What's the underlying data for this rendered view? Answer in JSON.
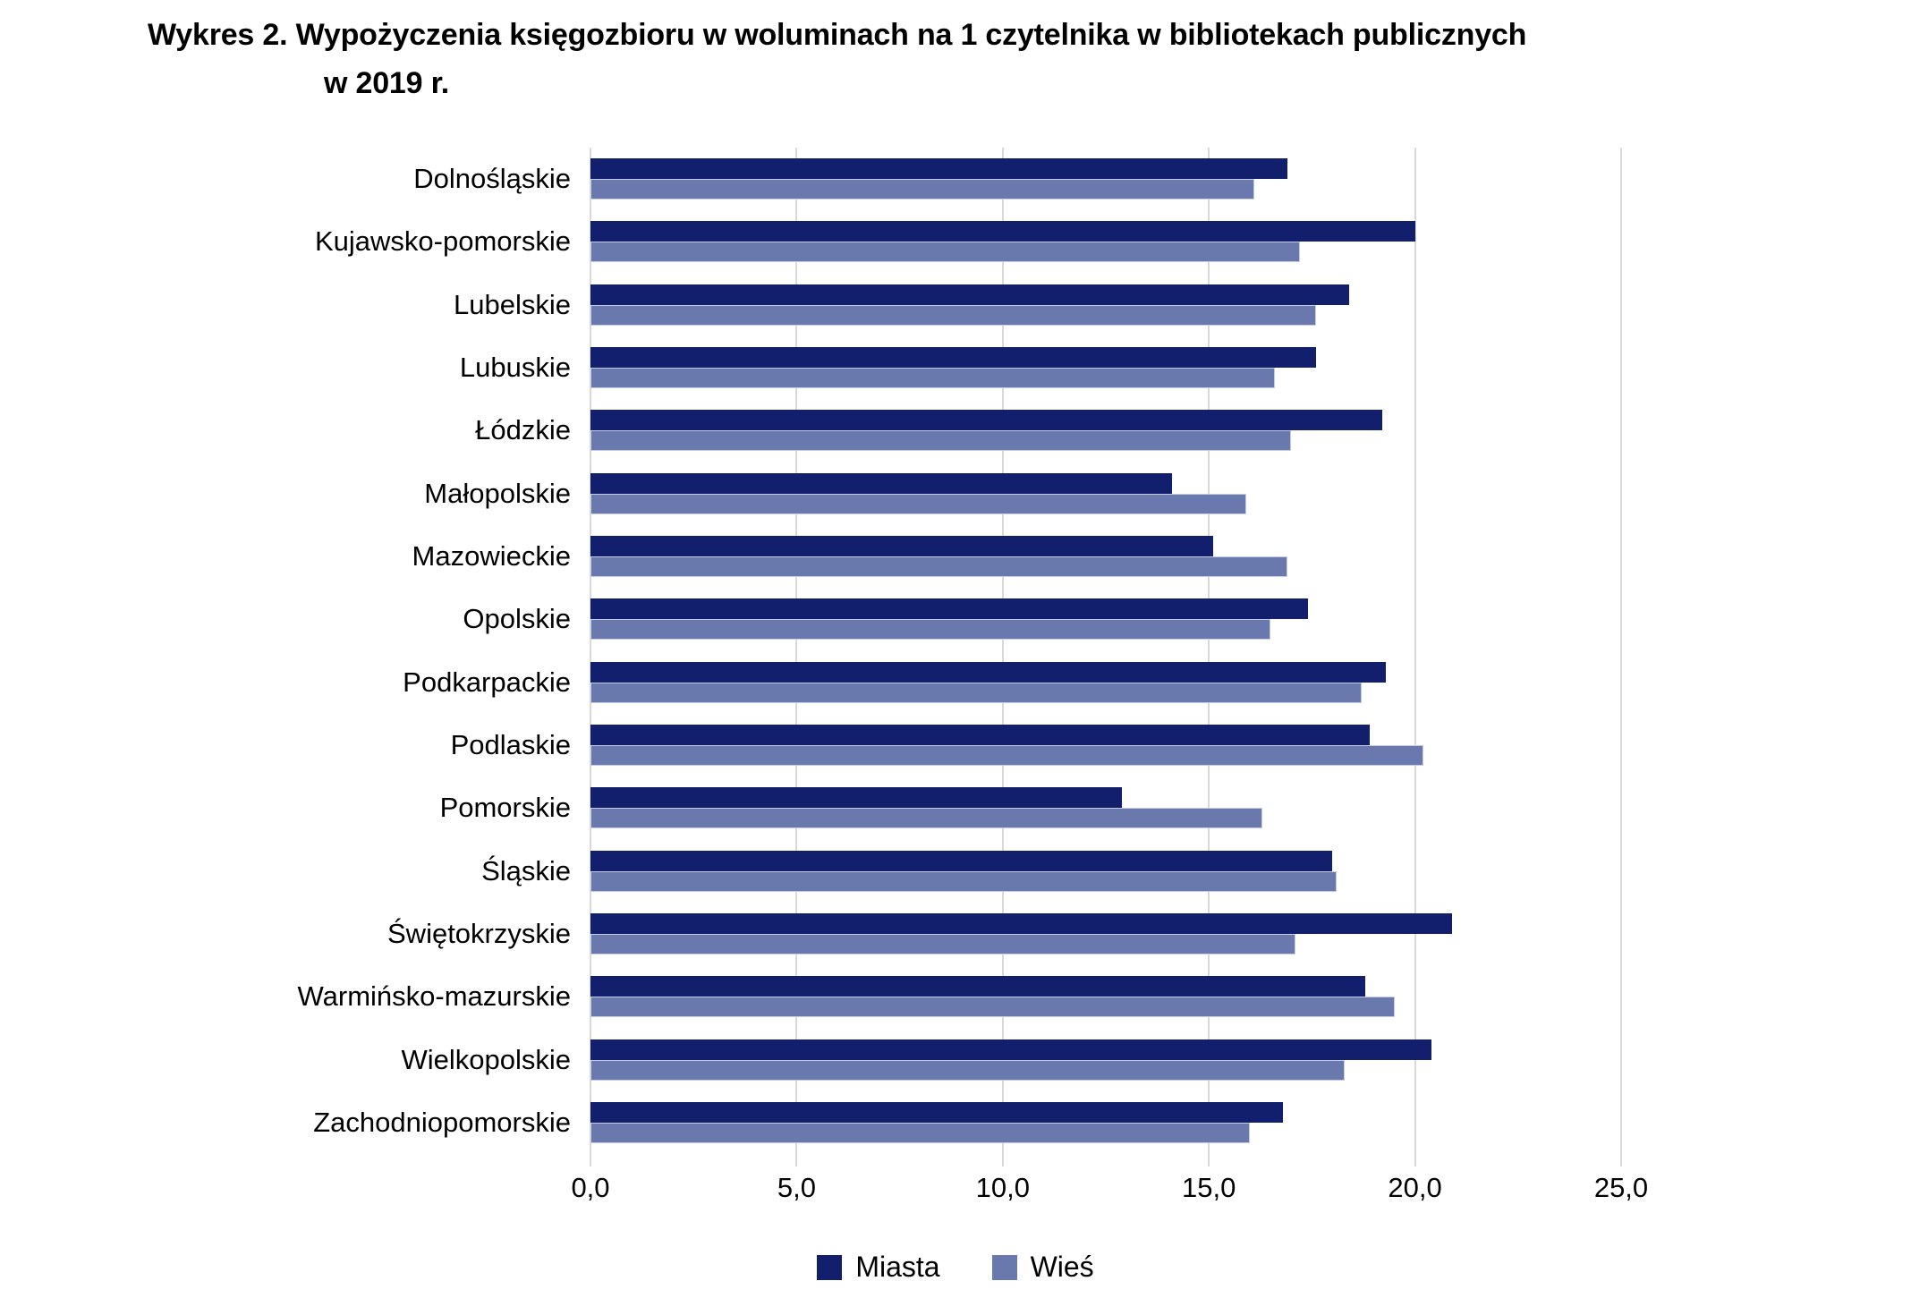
{
  "title": {
    "line1": "Wykres 2. Wypożyczenia księgozbioru w woluminach na 1 czytelnika w bibliotekach publicznych",
    "line2": "w 2019 r."
  },
  "colors": {
    "miasta": "#121F6D",
    "wies": "#6978AD",
    "gridline": "#D9D9D9",
    "text": "#000000",
    "background": "#FFFFFF"
  },
  "legend": {
    "items": [
      {
        "label": "Miasta",
        "color": "#121F6D"
      },
      {
        "label": "Wieś",
        "color": "#6978AD"
      }
    ],
    "position": "bottom-center"
  },
  "chart_data": {
    "type": "bar",
    "orientation": "horizontal",
    "title": "Wykres 2. Wypożyczenia księgozbioru w woluminach na 1 czytelnika w bibliotekach publicznych w 2019 r.",
    "xlabel": "",
    "ylabel": "",
    "xlim": [
      0,
      25
    ],
    "grid": true,
    "legend_position": "bottom",
    "x_ticks": [
      "0,0",
      "5,0",
      "10,0",
      "15,0",
      "20,0",
      "25,0"
    ],
    "x_tick_values": [
      0,
      5,
      10,
      15,
      20,
      25
    ],
    "categories": [
      "Dolnośląskie",
      "Kujawsko-pomorskie",
      "Lubelskie",
      "Lubuskie",
      "Łódzkie",
      "Małopolskie",
      "Mazowieckie",
      "Opolskie",
      "Podkarpackie",
      "Podlaskie",
      "Pomorskie",
      "Śląskie",
      "Świętokrzyskie",
      "Warmińsko-mazurskie",
      "Wielkopolskie",
      "Zachodniopomorskie"
    ],
    "series": [
      {
        "name": "Miasta",
        "color": "#121F6D",
        "values": [
          16.9,
          20.0,
          18.4,
          17.6,
          19.2,
          14.1,
          15.1,
          17.4,
          19.3,
          18.9,
          12.9,
          18.0,
          20.9,
          18.8,
          20.4,
          16.8
        ]
      },
      {
        "name": "Wieś",
        "color": "#6978AD",
        "values": [
          16.1,
          17.2,
          17.6,
          16.6,
          17.0,
          15.9,
          16.9,
          16.5,
          18.7,
          20.2,
          16.3,
          18.1,
          17.1,
          19.5,
          18.3,
          16.0
        ]
      }
    ]
  }
}
